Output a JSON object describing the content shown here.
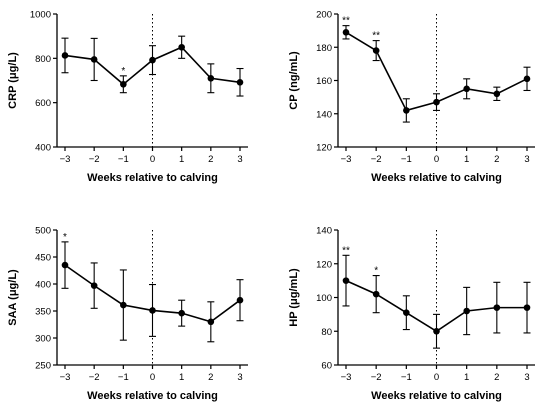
{
  "chart_data": [
    {
      "type": "line",
      "title": "",
      "xlabel": "Weeks relative to calving",
      "ylabel": "CRP (μg/L)",
      "x": [
        -3,
        -2,
        -1,
        0,
        1,
        2,
        3
      ],
      "xticks": [
        "−3",
        "−2",
        "−1",
        "0",
        "1",
        "2",
        "3"
      ],
      "ylim": [
        400,
        1000
      ],
      "yticks": [
        400,
        600,
        800,
        1000
      ],
      "series": [
        {
          "values": [
            813,
            795,
            683,
            792,
            850,
            710,
            692
          ],
          "err": [
            78,
            95,
            38,
            65,
            50,
            65,
            62
          ],
          "significance": [
            "",
            "",
            "*",
            "",
            "",
            "",
            ""
          ]
        }
      ],
      "vline_x": 0,
      "grid": false
    },
    {
      "type": "line",
      "title": "",
      "xlabel": "Weeks relative to calving",
      "ylabel": "CP (ng/mL)",
      "x": [
        -3,
        -2,
        -1,
        0,
        1,
        2,
        3
      ],
      "xticks": [
        "−3",
        "−2",
        "−1",
        "0",
        "1",
        "2",
        "3"
      ],
      "ylim": [
        120,
        200
      ],
      "yticks": [
        120,
        140,
        160,
        180,
        200
      ],
      "series": [
        {
          "values": [
            189,
            178,
            142,
            147,
            155,
            152,
            161
          ],
          "err": [
            4,
            6,
            7,
            5,
            6,
            4,
            7
          ],
          "significance": [
            "**",
            "**",
            "",
            "",
            "",
            "",
            ""
          ]
        }
      ],
      "vline_x": 0,
      "grid": false
    },
    {
      "type": "line",
      "title": "",
      "xlabel": "Weeks relative to calving",
      "ylabel": "SAA (μg/L)",
      "x": [
        -3,
        -2,
        -1,
        0,
        1,
        2,
        3
      ],
      "xticks": [
        "−3",
        "−2",
        "−1",
        "0",
        "1",
        "2",
        "3"
      ],
      "ylim": [
        250,
        500
      ],
      "yticks": [
        250,
        300,
        350,
        400,
        450,
        500
      ],
      "series": [
        {
          "values": [
            435,
            397,
            361,
            351,
            346,
            330,
            370
          ],
          "err": [
            43,
            42,
            65,
            48,
            24,
            37,
            38
          ],
          "significance": [
            "*",
            "",
            "",
            "",
            "",
            "",
            ""
          ]
        }
      ],
      "vline_x": 0,
      "grid": false
    },
    {
      "type": "line",
      "title": "",
      "xlabel": "Weeks relative to calving",
      "ylabel": "HP (μg/mL)",
      "x": [
        -3,
        -2,
        -1,
        0,
        1,
        2,
        3
      ],
      "xticks": [
        "−3",
        "−2",
        "−1",
        "0",
        "1",
        "2",
        "3"
      ],
      "ylim": [
        60,
        140
      ],
      "yticks": [
        60,
        80,
        100,
        120,
        140
      ],
      "series": [
        {
          "values": [
            110,
            102,
            91,
            80,
            92,
            94,
            94
          ],
          "err": [
            15,
            11,
            10,
            10,
            14,
            15,
            15
          ],
          "significance": [
            "**",
            "*",
            "",
            "",
            "",
            "",
            ""
          ]
        }
      ],
      "vline_x": 0,
      "grid": false
    }
  ]
}
